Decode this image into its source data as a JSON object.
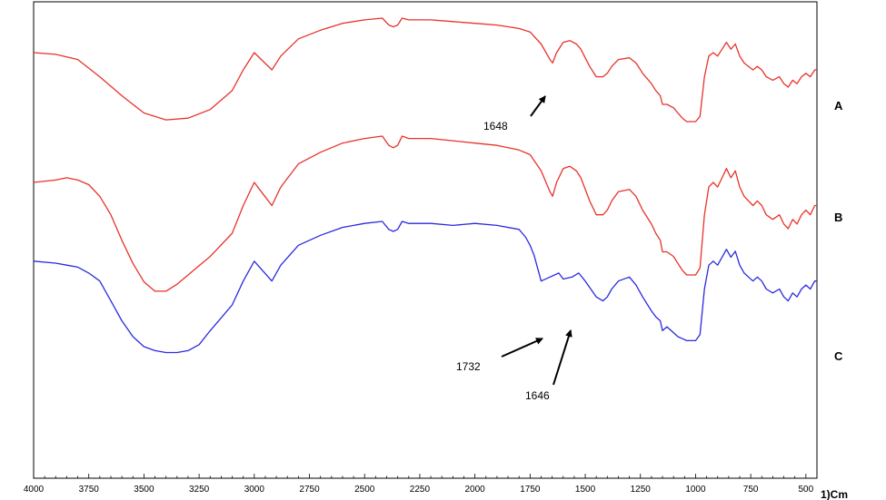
{
  "chart_data": {
    "type": "line",
    "title": "",
    "xlabel": "1)Cm",
    "ylabel": "",
    "xlim": [
      4000,
      450
    ],
    "x_reversed": true,
    "grid": false,
    "xticks": [
      "4000",
      "3750",
      "3500",
      "3250",
      "3000",
      "2750",
      "2500",
      "2250",
      "2000",
      "1750",
      "1500",
      "1250",
      "1000",
      "750",
      "500"
    ],
    "series": [
      {
        "name": "A",
        "color": "#e8322a",
        "x": [
          4000,
          3900,
          3800,
          3700,
          3600,
          3500,
          3400,
          3300,
          3200,
          3100,
          3050,
          3000,
          2960,
          2920,
          2880,
          2800,
          2700,
          2600,
          2500,
          2420,
          2390,
          2370,
          2350,
          2330,
          2300,
          2200,
          2100,
          2000,
          1900,
          1800,
          1750,
          1700,
          1660,
          1648,
          1630,
          1600,
          1570,
          1540,
          1520,
          1480,
          1450,
          1420,
          1400,
          1380,
          1350,
          1300,
          1270,
          1240,
          1200,
          1180,
          1160,
          1150,
          1130,
          1100,
          1080,
          1060,
          1040,
          1020,
          1000,
          980,
          960,
          940,
          920,
          900,
          880,
          860,
          840,
          820,
          800,
          780,
          760,
          740,
          720,
          700,
          680,
          650,
          620,
          600,
          580,
          560,
          540,
          520,
          500,
          480,
          460,
          450
        ],
        "y": [
          0.8,
          0.79,
          0.76,
          0.66,
          0.55,
          0.45,
          0.41,
          0.42,
          0.47,
          0.58,
          0.7,
          0.8,
          0.75,
          0.7,
          0.78,
          0.88,
          0.93,
          0.97,
          0.99,
          1.0,
          0.96,
          0.95,
          0.96,
          1.0,
          0.99,
          0.99,
          0.98,
          0.97,
          0.96,
          0.94,
          0.92,
          0.85,
          0.76,
          0.74,
          0.8,
          0.86,
          0.87,
          0.85,
          0.82,
          0.72,
          0.66,
          0.66,
          0.68,
          0.72,
          0.76,
          0.77,
          0.74,
          0.68,
          0.62,
          0.58,
          0.55,
          0.5,
          0.5,
          0.48,
          0.45,
          0.42,
          0.4,
          0.4,
          0.4,
          0.43,
          0.66,
          0.78,
          0.8,
          0.78,
          0.82,
          0.86,
          0.82,
          0.85,
          0.78,
          0.74,
          0.72,
          0.7,
          0.72,
          0.7,
          0.66,
          0.64,
          0.66,
          0.62,
          0.6,
          0.64,
          0.62,
          0.66,
          0.68,
          0.66,
          0.7,
          0.7
        ]
      },
      {
        "name": "B",
        "color": "#e8322a",
        "x": [
          4000,
          3900,
          3850,
          3800,
          3750,
          3700,
          3650,
          3600,
          3550,
          3500,
          3450,
          3400,
          3350,
          3300,
          3250,
          3200,
          3100,
          3050,
          3000,
          2960,
          2920,
          2880,
          2800,
          2700,
          2600,
          2500,
          2420,
          2390,
          2370,
          2350,
          2330,
          2300,
          2200,
          2100,
          2000,
          1900,
          1800,
          1750,
          1700,
          1660,
          1648,
          1630,
          1600,
          1570,
          1540,
          1520,
          1480,
          1450,
          1420,
          1400,
          1380,
          1350,
          1300,
          1270,
          1240,
          1200,
          1180,
          1160,
          1150,
          1130,
          1100,
          1080,
          1060,
          1040,
          1020,
          1000,
          980,
          960,
          940,
          920,
          900,
          880,
          860,
          840,
          820,
          800,
          780,
          760,
          740,
          720,
          700,
          680,
          650,
          620,
          600,
          580,
          560,
          540,
          520,
          500,
          480,
          460,
          450
        ],
        "y": [
          0.8,
          0.81,
          0.82,
          0.81,
          0.79,
          0.74,
          0.66,
          0.55,
          0.45,
          0.37,
          0.33,
          0.33,
          0.36,
          0.4,
          0.44,
          0.48,
          0.58,
          0.7,
          0.8,
          0.75,
          0.7,
          0.78,
          0.88,
          0.93,
          0.97,
          0.99,
          1.0,
          0.96,
          0.95,
          0.96,
          1.0,
          0.99,
          0.99,
          0.98,
          0.97,
          0.96,
          0.94,
          0.92,
          0.85,
          0.76,
          0.74,
          0.8,
          0.86,
          0.87,
          0.85,
          0.82,
          0.72,
          0.66,
          0.66,
          0.68,
          0.72,
          0.76,
          0.77,
          0.74,
          0.68,
          0.62,
          0.58,
          0.55,
          0.5,
          0.5,
          0.48,
          0.45,
          0.42,
          0.4,
          0.4,
          0.4,
          0.43,
          0.66,
          0.78,
          0.8,
          0.78,
          0.82,
          0.86,
          0.82,
          0.85,
          0.78,
          0.74,
          0.72,
          0.7,
          0.72,
          0.7,
          0.66,
          0.64,
          0.66,
          0.62,
          0.6,
          0.64,
          0.62,
          0.66,
          0.68,
          0.66,
          0.7,
          0.7
        ]
      },
      {
        "name": "C",
        "color": "#2a2ae0",
        "x": [
          4000,
          3900,
          3850,
          3800,
          3750,
          3700,
          3650,
          3600,
          3550,
          3500,
          3450,
          3400,
          3350,
          3300,
          3250,
          3200,
          3100,
          3050,
          3000,
          2960,
          2920,
          2880,
          2800,
          2700,
          2600,
          2500,
          2420,
          2390,
          2370,
          2350,
          2330,
          2300,
          2200,
          2100,
          2000,
          1900,
          1800,
          1770,
          1750,
          1732,
          1700,
          1660,
          1620,
          1600,
          1560,
          1530,
          1500,
          1450,
          1420,
          1400,
          1380,
          1350,
          1300,
          1270,
          1240,
          1200,
          1180,
          1160,
          1150,
          1130,
          1100,
          1080,
          1060,
          1040,
          1020,
          1000,
          980,
          960,
          940,
          920,
          900,
          880,
          860,
          840,
          820,
          800,
          780,
          760,
          740,
          720,
          700,
          680,
          650,
          620,
          600,
          580,
          560,
          540,
          520,
          500,
          480,
          460,
          450
        ],
        "y": [
          0.8,
          0.79,
          0.78,
          0.77,
          0.74,
          0.7,
          0.6,
          0.5,
          0.42,
          0.37,
          0.35,
          0.34,
          0.34,
          0.35,
          0.38,
          0.45,
          0.58,
          0.7,
          0.8,
          0.75,
          0.7,
          0.78,
          0.88,
          0.93,
          0.97,
          0.99,
          1.0,
          0.96,
          0.95,
          0.96,
          1.0,
          0.99,
          0.99,
          0.98,
          0.99,
          0.98,
          0.96,
          0.92,
          0.88,
          0.83,
          0.7,
          0.72,
          0.74,
          0.71,
          0.72,
          0.74,
          0.7,
          0.62,
          0.6,
          0.62,
          0.66,
          0.7,
          0.72,
          0.68,
          0.62,
          0.55,
          0.52,
          0.5,
          0.45,
          0.47,
          0.44,
          0.42,
          0.41,
          0.4,
          0.4,
          0.4,
          0.43,
          0.66,
          0.78,
          0.8,
          0.78,
          0.82,
          0.86,
          0.82,
          0.85,
          0.78,
          0.74,
          0.72,
          0.7,
          0.72,
          0.7,
          0.66,
          0.64,
          0.66,
          0.62,
          0.6,
          0.64,
          0.62,
          0.66,
          0.68,
          0.66,
          0.7,
          0.7
        ]
      }
    ],
    "annotations": [
      {
        "text": "1648",
        "series": "A",
        "x": 1648
      },
      {
        "text": "1732",
        "series": "C",
        "x": 1732
      },
      {
        "text": "1646",
        "series": "C",
        "x": 1646
      }
    ]
  }
}
